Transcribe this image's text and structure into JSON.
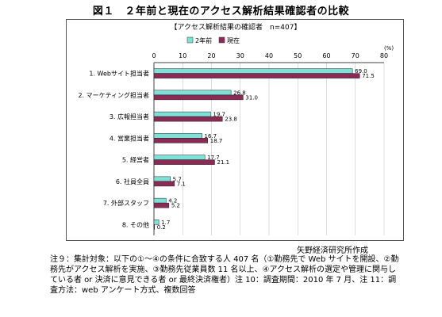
{
  "figure_title": "図１　２年前と現在のアクセス解析結果確認者の比較",
  "source": "矢野経済研究所作成",
  "notes": [
    "注９：集計対象：以下の①～④の条件に合致する人 407 名（①勤務先で Web サイトを開設、②勤務先がアクセス解析を実施、③勤務先従業員数 11 名以上、④アクセス解析の選定や管理に関与している者 or 決済に意見できる者 or 最終決済権者）注 10：調査期間：2010 年 7 月、注 11：調査方法：web アンケート方式、複数回答"
  ],
  "colors": {
    "two_years_ago": "#7fe0d8",
    "current": "#8b2a55"
  },
  "chart_data": {
    "type": "bar",
    "orientation": "horizontal",
    "title": "【アクセス解析結果の確認者　n=407】",
    "unit_label": "(%)",
    "xlim": [
      0,
      80
    ],
    "ticks": [
      0,
      10,
      20,
      30,
      40,
      50,
      60,
      70,
      80
    ],
    "legend_position": "top-right",
    "categories": [
      "1. Webサイト担当者",
      "2. マーケティング担当者",
      "3. 広報担当者",
      "4. 営業担当者",
      "5. 経営者",
      "6. 社員全員",
      "7. 外部スタッフ",
      "8. その他"
    ],
    "series": [
      {
        "name": "2年前",
        "values": [
          69.0,
          26.8,
          19.7,
          16.7,
          17.7,
          5.7,
          4.2,
          1.7
        ]
      },
      {
        "name": "現在",
        "values": [
          71.5,
          31.0,
          23.8,
          18.7,
          21.1,
          7.1,
          5.2,
          0.2
        ]
      }
    ]
  }
}
